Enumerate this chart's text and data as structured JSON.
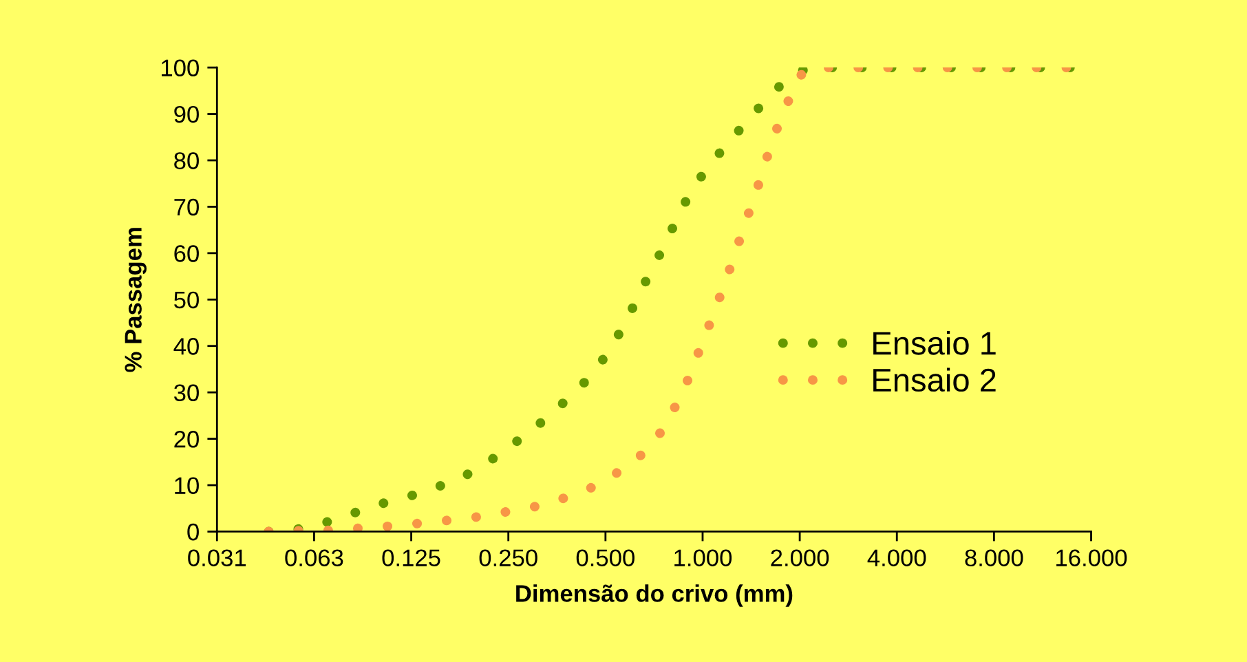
{
  "chart_data": {
    "type": "line",
    "xlabel": "Dimensão do crivo (mm)",
    "ylabel": "% Passagem",
    "log": "x",
    "xlim": [
      0.03125,
      16
    ],
    "ylim": [
      0,
      100
    ],
    "xticks": [
      {
        "value": 0.03125,
        "label": "0.031"
      },
      {
        "value": 0.0625,
        "label": "0.063"
      },
      {
        "value": 0.125,
        "label": "0.125"
      },
      {
        "value": 0.25,
        "label": "0.250"
      },
      {
        "value": 0.5,
        "label": "0.500"
      },
      {
        "value": 1,
        "label": "1.000"
      },
      {
        "value": 2,
        "label": "2.000"
      },
      {
        "value": 4,
        "label": "4.000"
      },
      {
        "value": 8,
        "label": "8.000"
      },
      {
        "value": 16,
        "label": "16.000"
      }
    ],
    "yticks": [
      0,
      10,
      20,
      30,
      40,
      50,
      60,
      70,
      80,
      90,
      100
    ],
    "grid": false,
    "legend": "right",
    "line_style": "dotted",
    "marker": "none",
    "series": [
      {
        "name": "Ensaio 1",
        "color": "#669900",
        "x": [
          0.0452,
          0.0533,
          0.0628,
          0.0723,
          0.0838,
          0.0972,
          0.113,
          0.132,
          0.153,
          0.178,
          0.204,
          0.233,
          0.265,
          0.3,
          0.338,
          0.381,
          0.427,
          0.473,
          0.518,
          0.561,
          0.604,
          0.646,
          0.695,
          0.749,
          0.802,
          0.858,
          0.923,
          1.011,
          1.12,
          1.241,
          1.374,
          1.53,
          1.704,
          1.898,
          2.162,
          14.72
        ],
        "values": [
          0,
          0.3,
          1.2,
          2.6,
          4.1,
          5.7,
          6.9,
          8.2,
          9.8,
          11.5,
          13.9,
          16.5,
          19.4,
          22.1,
          25.4,
          28.5,
          31.9,
          35.5,
          39.4,
          43.6,
          47.9,
          52.1,
          56.4,
          60.7,
          65,
          69.3,
          73.4,
          77.4,
          81.3,
          84.9,
          88.5,
          92.1,
          95.5,
          98.6,
          100,
          100
        ]
      },
      {
        "name": "Ensaio 2",
        "color": "#f79646",
        "x": [
          0.0452,
          0.0533,
          0.0628,
          0.0732,
          0.0853,
          0.1,
          0.1172,
          0.1373,
          0.161,
          0.1887,
          0.22,
          0.256,
          0.299,
          0.348,
          0.404,
          0.468,
          0.533,
          0.611,
          0.688,
          0.753,
          0.815,
          0.873,
          0.929,
          0.983,
          1.04,
          1.101,
          1.165,
          1.227,
          1.291,
          1.358,
          1.43,
          1.504,
          1.575,
          1.647,
          1.753,
          1.866,
          1.986,
          2.162,
          14.72
        ],
        "values": [
          0,
          0.2,
          0.2,
          0.3,
          0.7,
          1,
          1.4,
          1.9,
          2.4,
          2.9,
          3.6,
          4.5,
          5.3,
          6.5,
          8.1,
          9.9,
          12.3,
          15.1,
          18.2,
          22.1,
          26.4,
          30.5,
          35,
          39.6,
          43.9,
          48.4,
          53,
          57.5,
          62.1,
          66.6,
          71.2,
          75.6,
          80.1,
          84.6,
          89,
          93.7,
          98,
          100,
          100
        ]
      }
    ]
  }
}
